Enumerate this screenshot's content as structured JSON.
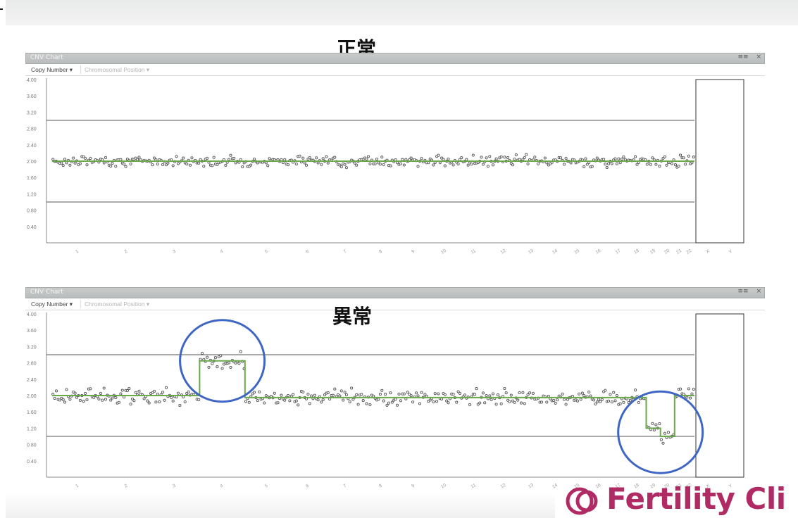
{
  "labels": {
    "normal": "正常",
    "abnormal": "異常"
  },
  "toolbar": {
    "copy_number": "Copy Number ▾",
    "chromosomal_position": "Chromosomal Position ▾"
  },
  "window": {
    "title": "CNV Chart",
    "buttons": [
      "≡≡",
      "×"
    ]
  },
  "logo": {
    "text": "Fertility Cli",
    "color": "#b02a63"
  },
  "colors": {
    "points": "#555555",
    "segment": "#6aaa4a",
    "circle": "#3f66c4",
    "grid": "#555555"
  },
  "chart_data": [
    {
      "type": "scatter",
      "title": "正常",
      "ylabel": "Copy Number",
      "ylim": [
        0,
        4.0
      ],
      "yticks": [
        "4.00",
        "3.60",
        "3.20",
        "2.80",
        "2.40",
        "2.00",
        "1.60",
        "1.20",
        "0.80",
        "0.40"
      ],
      "reference_lines": [
        3.0,
        1.0
      ],
      "categories": [
        "1",
        "2",
        "3",
        "4",
        "5",
        "6",
        "7",
        "8",
        "9",
        "10",
        "11",
        "12",
        "13",
        "14",
        "15",
        "16",
        "17",
        "18",
        "19",
        "20",
        "21",
        "22",
        "X",
        "Y"
      ],
      "segments": [
        {
          "chromosomes": "1-22",
          "value": 2.0
        }
      ],
      "point_noise": 0.06,
      "highlights": []
    },
    {
      "type": "scatter",
      "title": "異常",
      "ylabel": "Copy Number",
      "ylim": [
        0,
        4.0
      ],
      "yticks": [
        "4.00",
        "3.60",
        "3.20",
        "2.80",
        "2.40",
        "2.00",
        "1.60",
        "1.20",
        "0.80",
        "0.40"
      ],
      "reference_lines": [
        3.0,
        1.0
      ],
      "categories": [
        "1",
        "2",
        "3",
        "4",
        "5",
        "6",
        "7",
        "8",
        "9",
        "10",
        "11",
        "12",
        "13",
        "14",
        "15",
        "16",
        "17",
        "18",
        "19",
        "20",
        "21",
        "22",
        "X",
        "Y"
      ],
      "segments": [
        {
          "chromosomes": "1-3",
          "value": 2.0
        },
        {
          "chromosomes": "4",
          "value": 2.85
        },
        {
          "chromosomes": "5-18",
          "value": 1.95
        },
        {
          "chromosomes": "19",
          "value": 1.2
        },
        {
          "chromosomes": "20",
          "value": 1.0
        },
        {
          "chromosomes": "21-22",
          "value": 2.0
        }
      ],
      "point_noise": 0.09,
      "highlights": [
        "4",
        "19-20"
      ]
    }
  ]
}
